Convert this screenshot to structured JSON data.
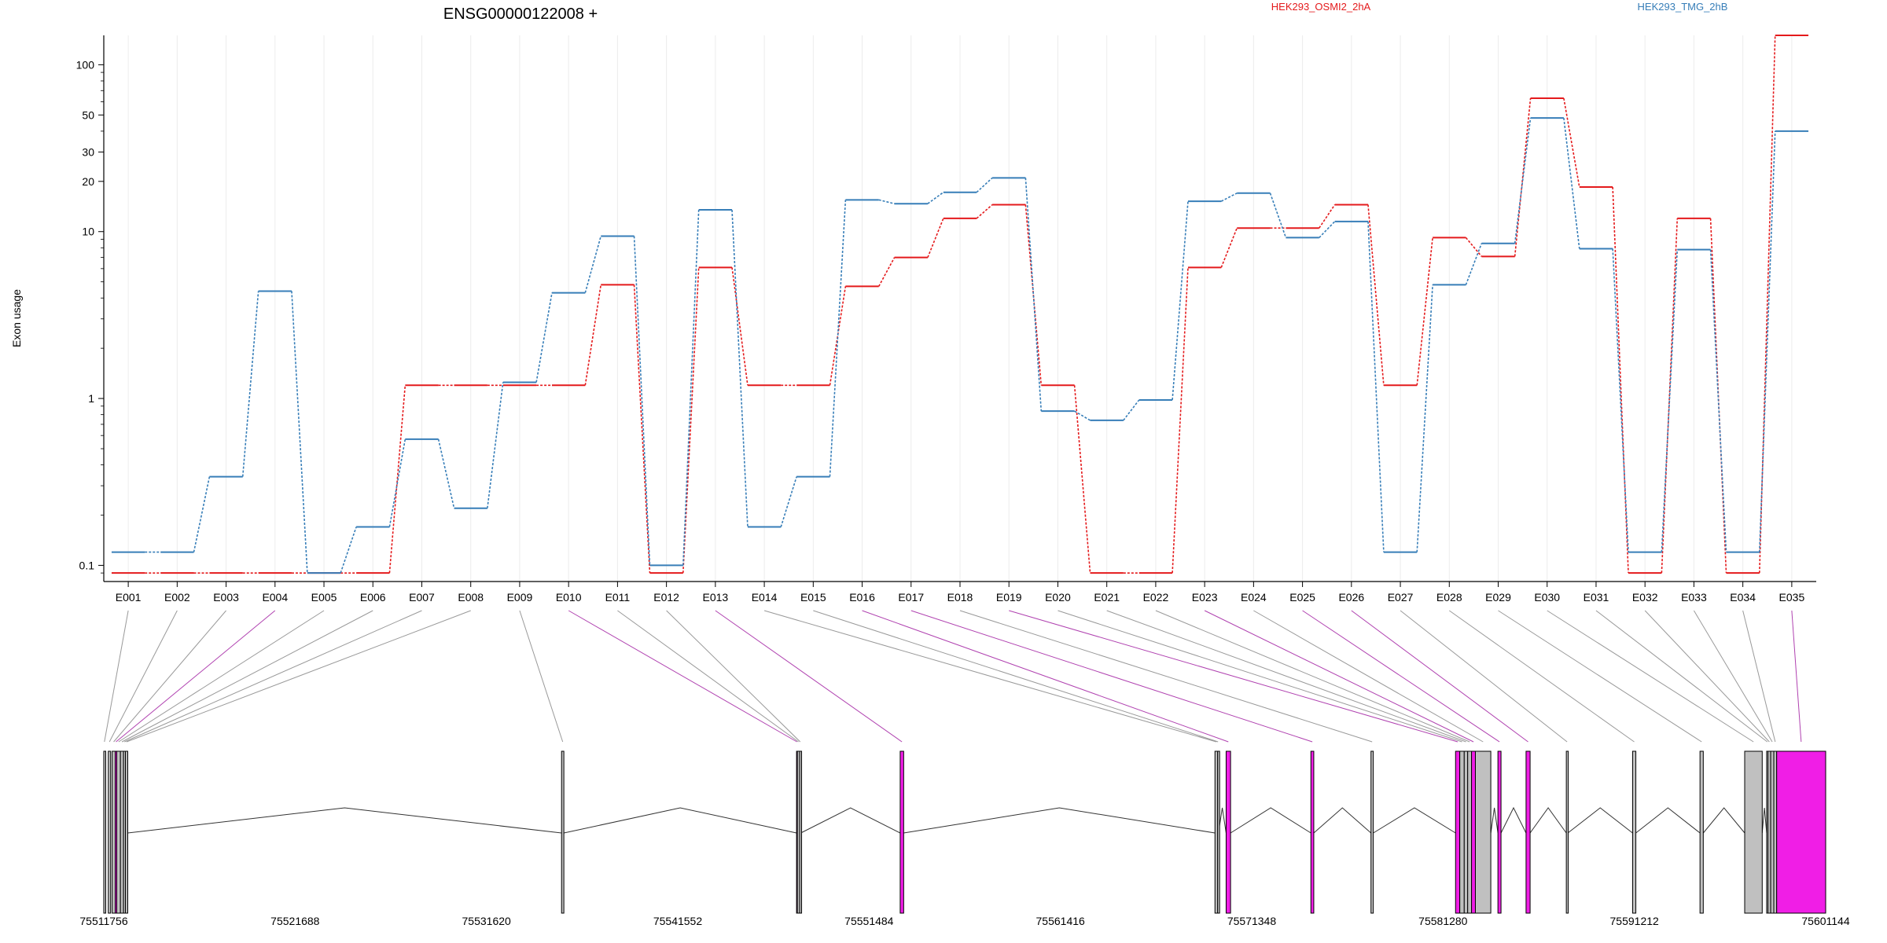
{
  "chart_data": {
    "type": "line",
    "title": "ENSG00000122008 +",
    "ylabel": "Exon usage",
    "yscale": "log",
    "ylim": [
      0.08,
      150
    ],
    "yticks": [
      {
        "v": 0.1,
        "label": "0.1"
      },
      {
        "v": 1,
        "label": "1"
      },
      {
        "v": 10,
        "label": "10"
      },
      {
        "v": 20,
        "label": "20"
      },
      {
        "v": 30,
        "label": "30"
      },
      {
        "v": 50,
        "label": "50"
      },
      {
        "v": 100,
        "label": "100"
      }
    ],
    "categories": [
      "E001",
      "E002",
      "E003",
      "E004",
      "E005",
      "E006",
      "E007",
      "E008",
      "E009",
      "E010",
      "E011",
      "E012",
      "E013",
      "E014",
      "E015",
      "E016",
      "E017",
      "E018",
      "E019",
      "E020",
      "E021",
      "E022",
      "E023",
      "E024",
      "E025",
      "E026",
      "E027",
      "E028",
      "E029",
      "E030",
      "E031",
      "E032",
      "E033",
      "E034",
      "E035"
    ],
    "series": [
      {
        "name": "HEK293_OSMI2_2hA",
        "color": "#e41a1c",
        "values": [
          0.09,
          0.09,
          0.09,
          0.09,
          0.09,
          0.09,
          1.2,
          1.2,
          1.2,
          1.2,
          4.8,
          0.09,
          6.1,
          1.2,
          1.2,
          4.7,
          7.0,
          12,
          14.5,
          1.2,
          0.09,
          0.09,
          6.1,
          10.5,
          10.5,
          14.5,
          1.2,
          9.2,
          7.1,
          63,
          18.5,
          0.09,
          12,
          0.09,
          150
        ]
      },
      {
        "name": "HEK293_TMG_2hB",
        "color": "#377eb8",
        "values": [
          0.12,
          0.12,
          0.34,
          4.4,
          0.09,
          0.17,
          0.57,
          0.22,
          1.25,
          4.3,
          9.4,
          0.1,
          13.5,
          0.17,
          0.34,
          15.5,
          14.7,
          17.2,
          21,
          0.84,
          0.74,
          0.98,
          15.2,
          17,
          9.2,
          11.5,
          0.12,
          4.8,
          8.5,
          48,
          7.9,
          0.12,
          7.8,
          0.12,
          40
        ]
      }
    ],
    "genome": {
      "x_start": 75511756,
      "x_end": 75601144,
      "ticks": [
        75511756,
        75521688,
        75531620,
        75541552,
        75551484,
        75561416,
        75571348,
        75581280,
        75591212,
        75601144
      ],
      "exons": [
        {
          "id": "E001",
          "s": 75511756,
          "e": 75511820,
          "fill": "#c0c0c0"
        },
        {
          "id": "E002",
          "s": 75511990,
          "e": 75512110,
          "fill": "#c0c0c0"
        },
        {
          "id": "E003",
          "s": 75512190,
          "e": 75512350,
          "fill": "#c0c0c0"
        },
        {
          "id": "E004",
          "s": 75512350,
          "e": 75512430,
          "fill": "#f01ee6"
        },
        {
          "id": "E005",
          "s": 75512430,
          "e": 75512620,
          "fill": "#c0c0c0"
        },
        {
          "id": "E006",
          "s": 75512620,
          "e": 75512780,
          "fill": "#c0c0c0"
        },
        {
          "id": "E007",
          "s": 75512780,
          "e": 75512880,
          "fill": "#c0c0c0"
        },
        {
          "id": "E008",
          "s": 75512880,
          "e": 75513000,
          "fill": "#c0c0c0"
        },
        {
          "id": "E009",
          "s": 75535520,
          "e": 75535640,
          "fill": "#c0c0c0"
        },
        {
          "id": "E010",
          "s": 75547720,
          "e": 75547760,
          "fill": "#f01ee6"
        },
        {
          "id": "E011",
          "s": 75547760,
          "e": 75547880,
          "fill": "#c0c0c0"
        },
        {
          "id": "E012",
          "s": 75547880,
          "e": 75547940,
          "fill": "#c0c0c0"
        },
        {
          "id": "E013",
          "s": 75553100,
          "e": 75553280,
          "fill": "#f01ee6"
        },
        {
          "id": "E014",
          "s": 75569440,
          "e": 75569580,
          "fill": "#c0c0c0"
        },
        {
          "id": "E015",
          "s": 75569580,
          "e": 75569620,
          "fill": "#c0c0c0"
        },
        {
          "id": "E016",
          "s": 75570020,
          "e": 75570250,
          "fill": "#f01ee6"
        },
        {
          "id": "E017",
          "s": 75574420,
          "e": 75574570,
          "fill": "#f01ee6"
        },
        {
          "id": "E018",
          "s": 75577540,
          "e": 75577660,
          "fill": "#c0c0c0"
        },
        {
          "id": "E019",
          "s": 75581930,
          "e": 75582150,
          "fill": "#f01ee6"
        },
        {
          "id": "E020",
          "s": 75582150,
          "e": 75582380,
          "fill": "#c0c0c0"
        },
        {
          "id": "E021",
          "s": 75582380,
          "e": 75582560,
          "fill": "#c0c0c0"
        },
        {
          "id": "E022",
          "s": 75582560,
          "e": 75582760,
          "fill": "#c0c0c0"
        },
        {
          "id": "E023",
          "s": 75582760,
          "e": 75582960,
          "fill": "#f01ee6"
        },
        {
          "id": "E024",
          "s": 75582960,
          "e": 75583760,
          "fill": "#c0c0c0"
        },
        {
          "id": "E025",
          "s": 75584130,
          "e": 75584290,
          "fill": "#f01ee6"
        },
        {
          "id": "E026",
          "s": 75585590,
          "e": 75585800,
          "fill": "#f01ee6"
        },
        {
          "id": "E027",
          "s": 75587680,
          "e": 75587760,
          "fill": "#c0c0c0"
        },
        {
          "id": "E028",
          "s": 75591120,
          "e": 75591290,
          "fill": "#c0c0c0"
        },
        {
          "id": "E029",
          "s": 75594620,
          "e": 75594790,
          "fill": "#c0c0c0"
        },
        {
          "id": "E030",
          "s": 75596940,
          "e": 75597850,
          "fill": "#c0c0c0"
        },
        {
          "id": "E031",
          "s": 75598080,
          "e": 75598150,
          "fill": "#c0c0c0"
        },
        {
          "id": "E032",
          "s": 75598150,
          "e": 75598290,
          "fill": "#c0c0c0"
        },
        {
          "id": "E033",
          "s": 75598290,
          "e": 75598450,
          "fill": "#c0c0c0"
        },
        {
          "id": "E034",
          "s": 75598450,
          "e": 75598600,
          "fill": "#c0c0c0"
        },
        {
          "id": "E035",
          "s": 75598600,
          "e": 75601144,
          "fill": "#f01ee6"
        }
      ],
      "link_colors": [
        "#999999",
        "#999999",
        "#999999",
        "#b042b0",
        "#999999",
        "#999999",
        "#999999",
        "#999999",
        "#999999",
        "#b042b0",
        "#999999",
        "#999999",
        "#b042b0",
        "#999999",
        "#999999",
        "#b042b0",
        "#b042b0",
        "#999999",
        "#b042b0",
        "#999999",
        "#999999",
        "#999999",
        "#b042b0",
        "#999999",
        "#b042b0",
        "#b042b0",
        "#999999",
        "#999999",
        "#999999",
        "#999999",
        "#999999",
        "#999999",
        "#999999",
        "#999999",
        "#b042b0"
      ],
      "introns": [
        [
          75513000,
          75535520
        ],
        [
          75535640,
          75547720
        ],
        [
          75547940,
          75553100
        ],
        [
          75553280,
          75569440
        ],
        [
          75569620,
          75570020
        ],
        [
          75570250,
          75574420
        ],
        [
          75574570,
          75577540
        ],
        [
          75577660,
          75581930
        ],
        [
          75583760,
          75584130
        ],
        [
          75584290,
          75585590
        ],
        [
          75585800,
          75587680
        ],
        [
          75587760,
          75591120
        ],
        [
          75591290,
          75594620
        ],
        [
          75594790,
          75596940
        ],
        [
          75597850,
          75598080
        ]
      ]
    }
  }
}
